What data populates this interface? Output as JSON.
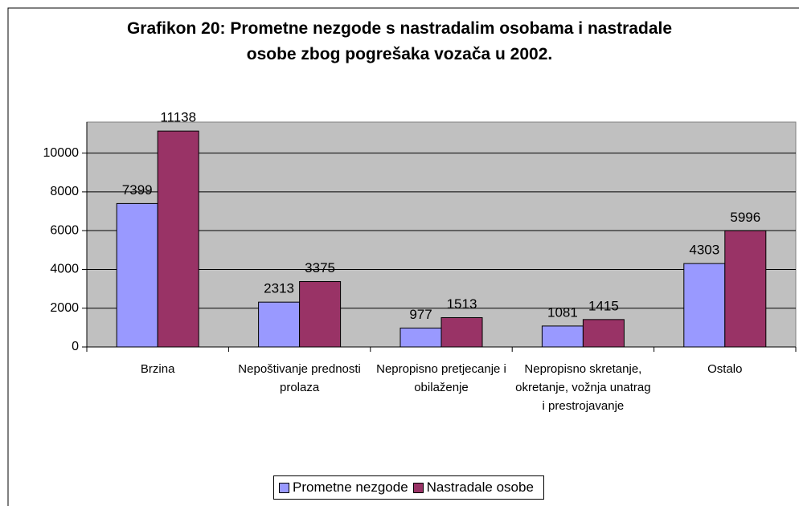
{
  "chart_data": {
    "type": "bar",
    "title": "Grafikon 20: Prometne nezgode s nastradalim osobama i nastradale osobe zbog pogrešaka vozača u 2002.",
    "categories": [
      "Brzina",
      "Nepoštivanje prednosti prolaza",
      "Nepropisno pretjecanje i obilaženje",
      "Nepropisno skretanje, okretanje, vožnja unatrag i prestrojavanje",
      "Ostalo"
    ],
    "series": [
      {
        "name": "Prometne nezgode",
        "color": "#9999ff",
        "values": [
          7399,
          2313,
          977,
          1081,
          4303
        ]
      },
      {
        "name": "Nastradale osobe",
        "color": "#993366",
        "values": [
          11138,
          3375,
          1513,
          1415,
          5996
        ]
      }
    ],
    "ylim": [
      0,
      11600
    ],
    "yticks": [
      0,
      2000,
      4000,
      6000,
      8000,
      10000
    ],
    "grid": true,
    "plot_background": "#c0c0c0",
    "legend": "bottom"
  }
}
